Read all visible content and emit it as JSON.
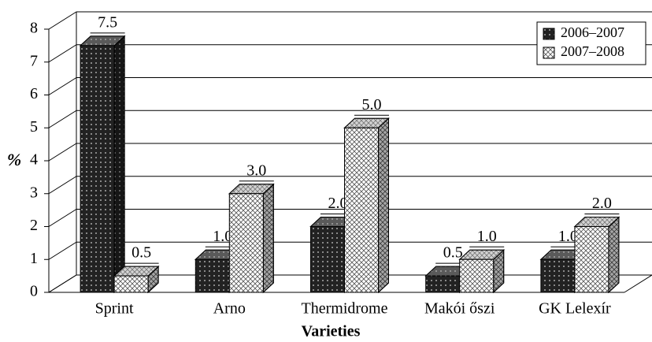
{
  "chart_data": {
    "type": "bar3d",
    "categories": [
      "Sprint",
      "Arno",
      "Thermidrome",
      "Makói őszi",
      "GK Lelexír"
    ],
    "series": [
      {
        "name": "2006–2007",
        "color": "#222222",
        "values": [
          7.5,
          1.0,
          2.0,
          0.5,
          1.0
        ],
        "value_labels": [
          "7.5",
          "1.0",
          "2.0",
          "0.5",
          "1.0"
        ]
      },
      {
        "name": "2007–2008",
        "color": "#ffffff",
        "values": [
          0.5,
          3.0,
          5.0,
          1.0,
          2.0
        ],
        "value_labels": [
          "0.5",
          "3.0",
          "5.0",
          "1.0",
          "2.0"
        ]
      }
    ],
    "ylabel": "%",
    "xlabel": "Varieties",
    "ylim": [
      0,
      8
    ],
    "yticks": [
      0,
      1,
      2,
      3,
      4,
      5,
      6,
      7,
      8
    ],
    "grid": true,
    "legend": "top-right"
  }
}
